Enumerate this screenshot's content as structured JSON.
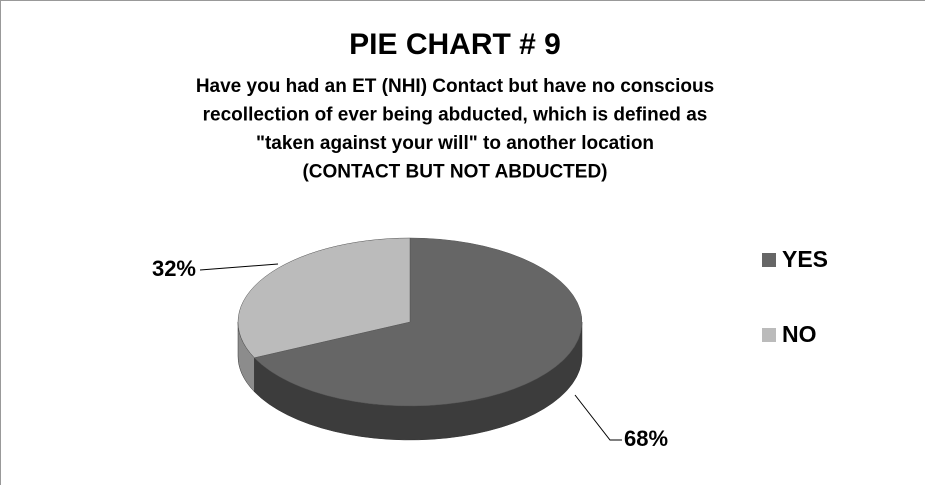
{
  "chart_data": {
    "type": "pie",
    "title": "PIE CHART # 9",
    "subtitle": [
      "Have you had an ET (NHI) Contact but have no conscious",
      "recollection of ever being abducted, which is defined as",
      "\"taken against your will\" to another location",
      "(CONTACT BUT NOT ABDUCTED)"
    ],
    "categories": [
      "YES",
      "NO"
    ],
    "values": [
      68,
      32
    ],
    "value_labels": [
      "68%",
      "32%"
    ],
    "colors": [
      "#666666",
      "#bbbbbb"
    ],
    "legend": "right"
  }
}
